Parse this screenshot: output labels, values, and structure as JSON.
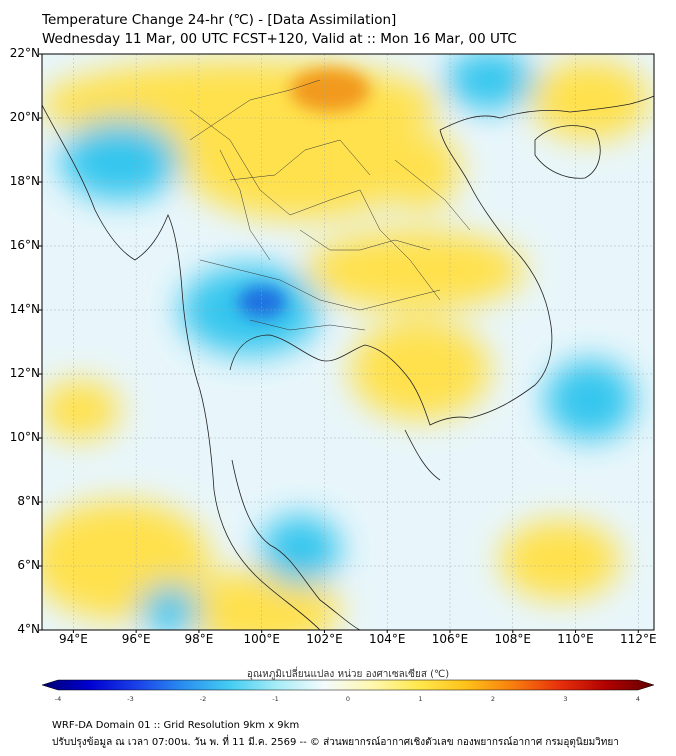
{
  "header": {
    "title_line1": "Temperature Change 24-hr (℃) - [Data Assimilation]",
    "title_line2": "Wednesday 11 Mar, 00 UTC FCST+120, Valid at :: Mon 16 Mar, 00 UTC"
  },
  "map": {
    "lat_labels": [
      "22°N",
      "20°N",
      "18°N",
      "16°N",
      "14°N",
      "12°N",
      "10°N",
      "8°N",
      "6°N",
      "4°N"
    ],
    "lon_labels": [
      "94°E",
      "96°E",
      "98°E",
      "100°E",
      "102°E",
      "104°E",
      "106°E",
      "108°E",
      "110°E",
      "112°E"
    ],
    "lat_range": [
      4,
      22
    ],
    "lon_range": [
      93,
      112.5
    ],
    "background_color": "#e8f6fb",
    "warm_color": "#ffe14d",
    "cool_color": "#35c6ee",
    "strong_cool_color": "#1e6fe0",
    "hot_color": "#f29a1a"
  },
  "colorbar": {
    "title": "อุณหภูมิเปลี่ยนแปลง หน่วย องศาเซลเซียส (℃)",
    "ticks": [
      "-4",
      "-3",
      "-2",
      "-1",
      "0",
      "1",
      "2",
      "3",
      "4"
    ],
    "range": [
      -4,
      4
    ],
    "colors": [
      "#000070",
      "#0000d0",
      "#1a3fe8",
      "#2a8ff0",
      "#45cdf2",
      "#a8ecf6",
      "#f4fbfd",
      "#fff7b0",
      "#ffe84d",
      "#ffc21a",
      "#f77e0e",
      "#e8300c",
      "#b00000",
      "#600000"
    ]
  },
  "footer": {
    "line1": "WRF-DA Domain 01 :: Grid Resolution 9km x 9km",
    "line2": "ปรับปรุงข้อมูล ณ เวลา 07:00น. วัน พ. ที่ 11 มี.ค. 2569 -- © ส่วนพยากรณ์อากาศเชิงตัวเลข กองพยากรณ์อากาศ กรมอุตุนิยมวิทยา"
  }
}
